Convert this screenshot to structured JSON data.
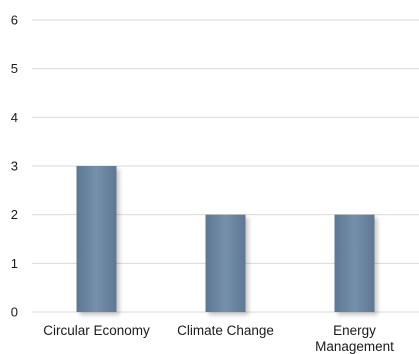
{
  "chart_data": {
    "type": "bar",
    "categories": [
      [
        "Circular Economy"
      ],
      [
        "Climate Change"
      ],
      [
        "Energy",
        "Management"
      ]
    ],
    "values": [
      3,
      2,
      2
    ],
    "ylim": [
      0,
      6
    ],
    "yticks": [
      "0",
      "1",
      "2",
      "3",
      "4",
      "5",
      "6"
    ],
    "grid": true,
    "legend": "none",
    "colors": {
      "bar": "#6f86a1",
      "bar_edge": "#5d7590",
      "grid": "#d9d9d9",
      "text": "#1a1a1a"
    }
  }
}
